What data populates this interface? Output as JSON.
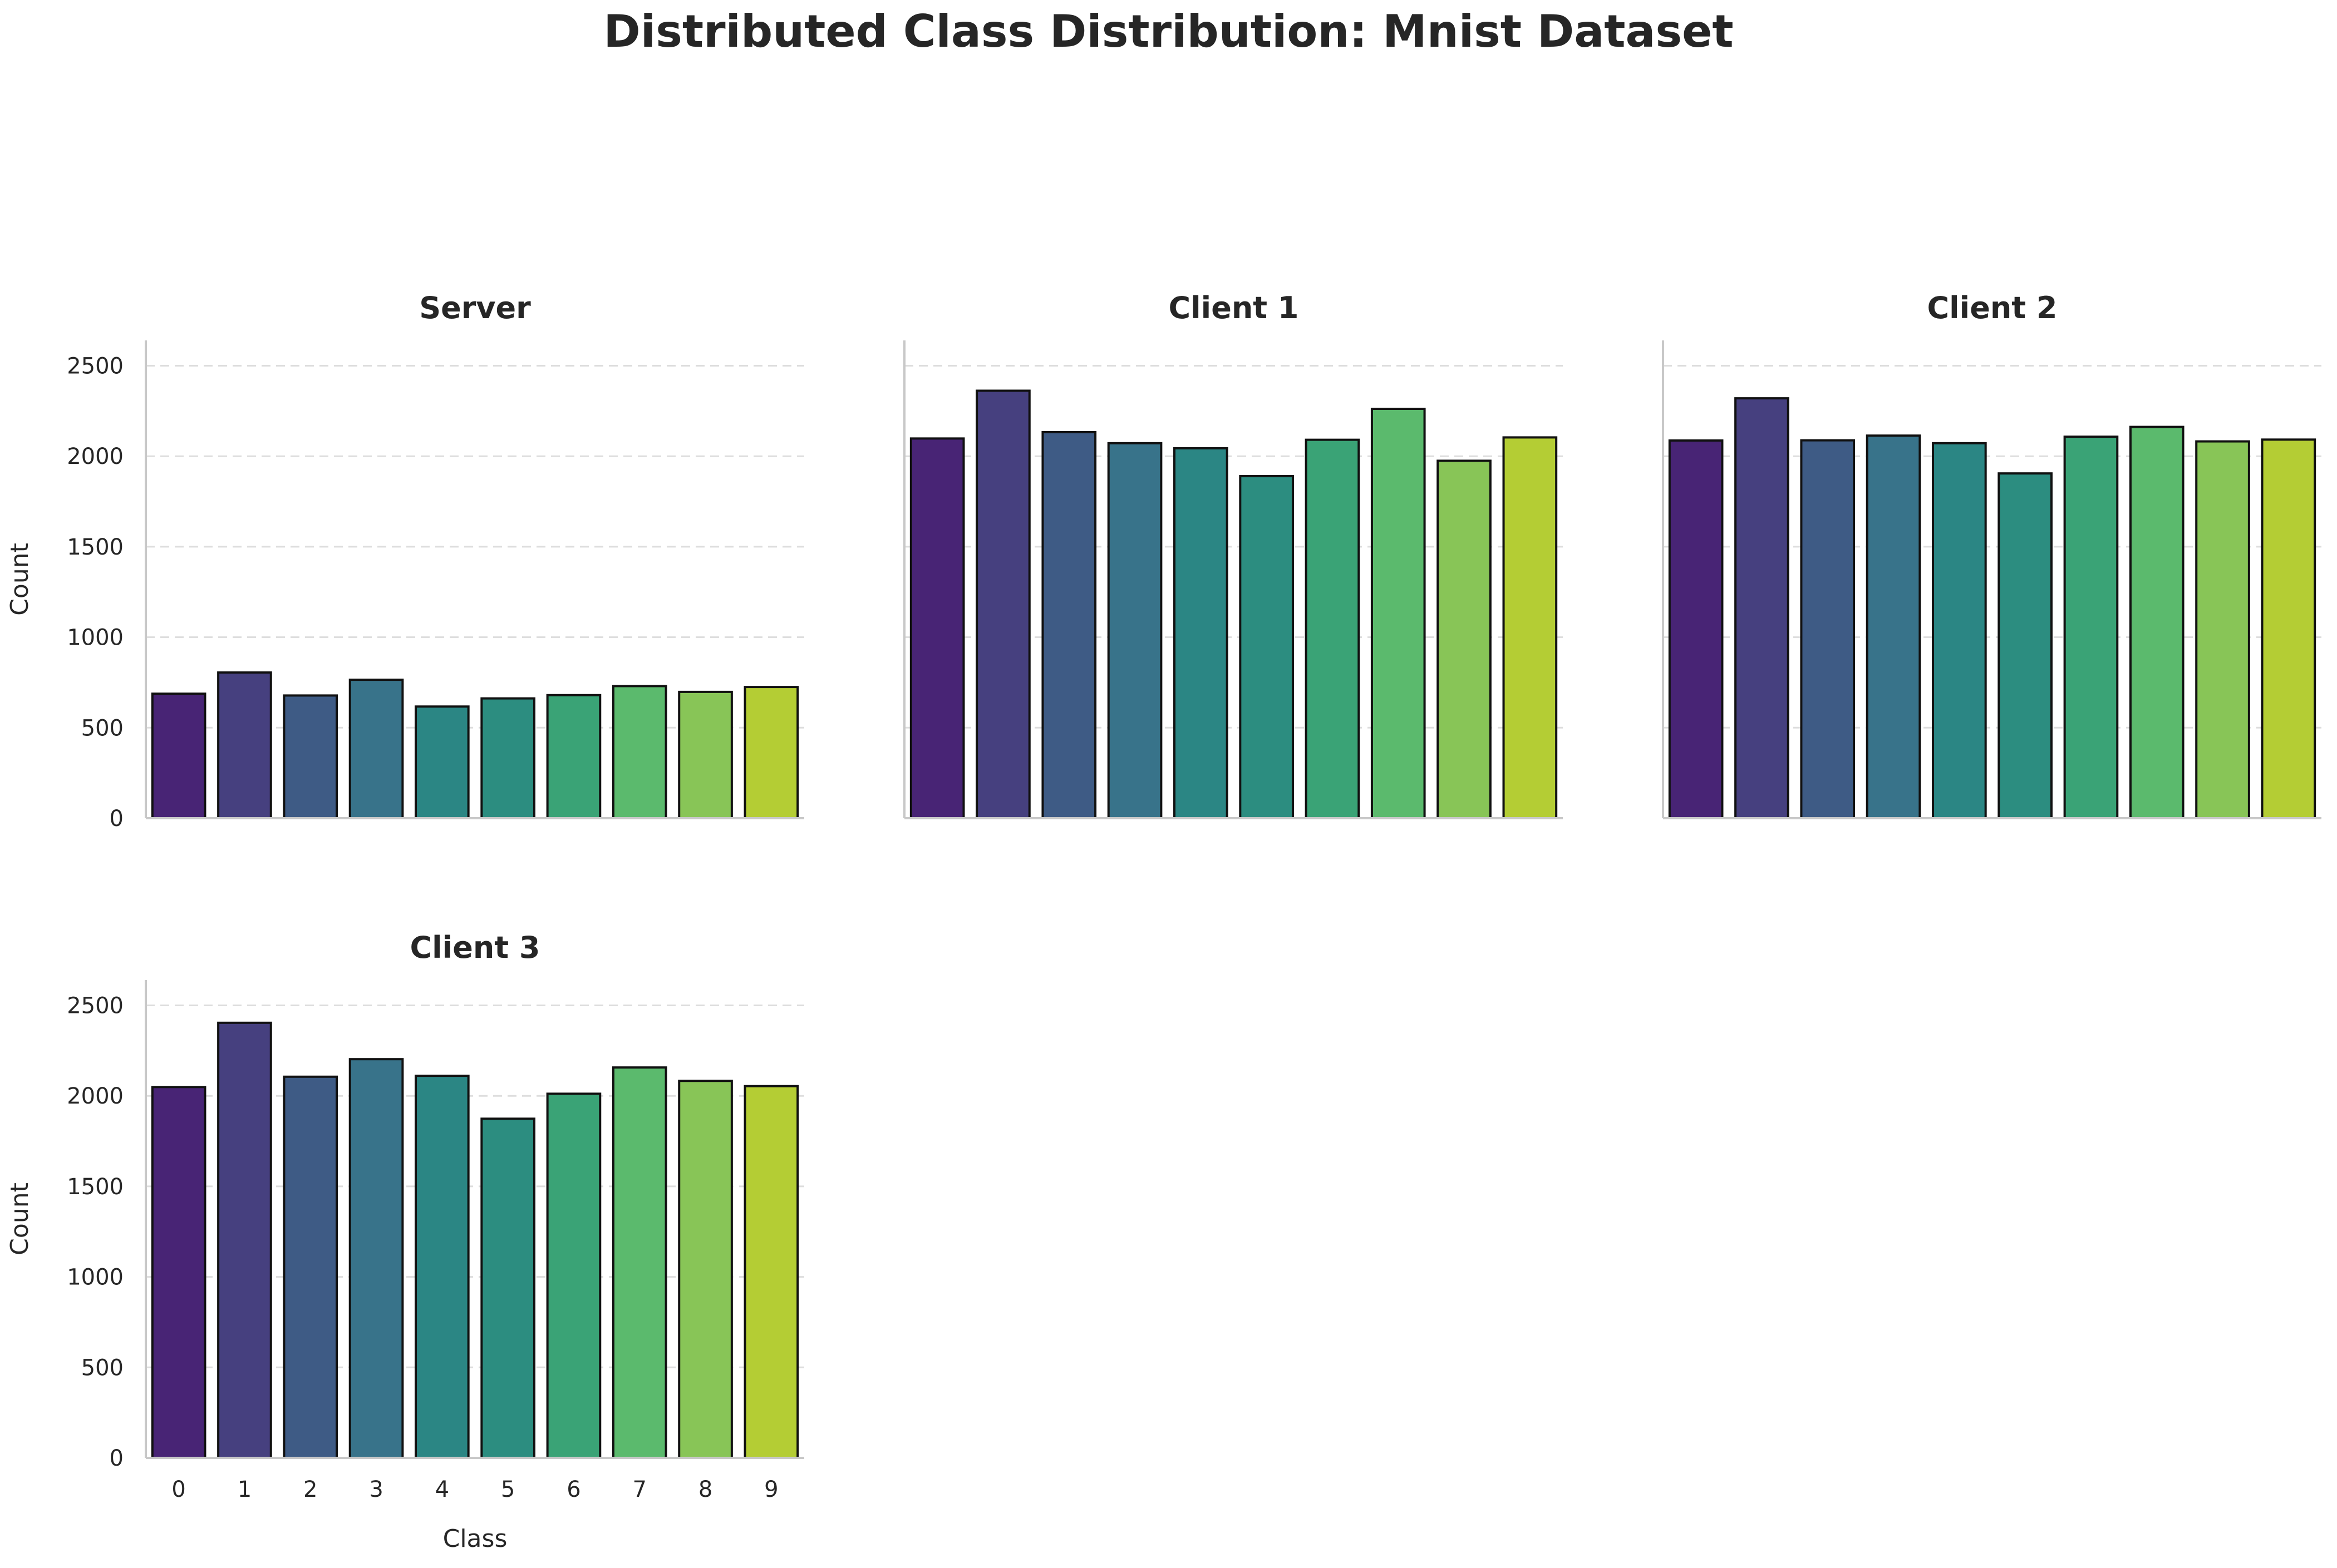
{
  "figure": {
    "title": "Distributed Class Distribution: Mnist Dataset"
  },
  "chart_data": [
    {
      "type": "bar",
      "title": "Server",
      "categories": [
        "0",
        "1",
        "2",
        "3",
        "4",
        "5",
        "6",
        "7",
        "8",
        "9"
      ],
      "values": [
        688,
        805,
        678,
        765,
        617,
        662,
        680,
        730,
        698,
        725
      ],
      "xlabel": "",
      "ylabel": "Count",
      "ylim": [
        0,
        2640
      ],
      "yticks": [
        0,
        500,
        1000,
        1500,
        2000,
        2500
      ],
      "grid": "y-dashed",
      "show_x_ticklabels": false,
      "show_y_ticklabels": true
    },
    {
      "type": "bar",
      "title": "Client 1",
      "categories": [
        "0",
        "1",
        "2",
        "3",
        "4",
        "5",
        "6",
        "7",
        "8",
        "9"
      ],
      "values": [
        2098,
        2362,
        2133,
        2072,
        2044,
        1890,
        2091,
        2262,
        1975,
        2104
      ],
      "xlabel": "",
      "ylabel": "",
      "ylim": [
        0,
        2640
      ],
      "yticks": [
        0,
        500,
        1000,
        1500,
        2000,
        2500
      ],
      "grid": "y-dashed",
      "show_x_ticklabels": false,
      "show_y_ticklabels": false
    },
    {
      "type": "bar",
      "title": "Client 2",
      "categories": [
        "0",
        "1",
        "2",
        "3",
        "4",
        "5",
        "6",
        "7",
        "8",
        "9"
      ],
      "values": [
        2087,
        2320,
        2088,
        2114,
        2072,
        1905,
        2108,
        2162,
        2082,
        2092
      ],
      "xlabel": "",
      "ylabel": "",
      "ylim": [
        0,
        2640
      ],
      "yticks": [
        0,
        500,
        1000,
        1500,
        2000,
        2500
      ],
      "grid": "y-dashed",
      "show_x_ticklabels": false,
      "show_y_ticklabels": false
    },
    {
      "type": "bar",
      "title": "Client 3",
      "categories": [
        "0",
        "1",
        "2",
        "3",
        "4",
        "5",
        "6",
        "7",
        "8",
        "9"
      ],
      "values": [
        2049,
        2404,
        2106,
        2203,
        2111,
        1874,
        2012,
        2157,
        2083,
        2054
      ],
      "xlabel": "Class",
      "ylabel": "Count",
      "ylim": [
        0,
        2640
      ],
      "yticks": [
        0,
        500,
        1000,
        1500,
        2000,
        2500
      ],
      "grid": "y-dashed",
      "show_x_ticklabels": true,
      "show_y_ticklabels": true
    }
  ],
  "colors": {
    "bars": [
      "#482475",
      "#46407f",
      "#3e5b85",
      "#38738a",
      "#2b8684",
      "#2c8d80",
      "#3aa376",
      "#5bba6d",
      "#88c557",
      "#b4cd34"
    ],
    "bar_edge": "#111111",
    "grid": "#dddddd",
    "spine": "#c8c8c8"
  }
}
